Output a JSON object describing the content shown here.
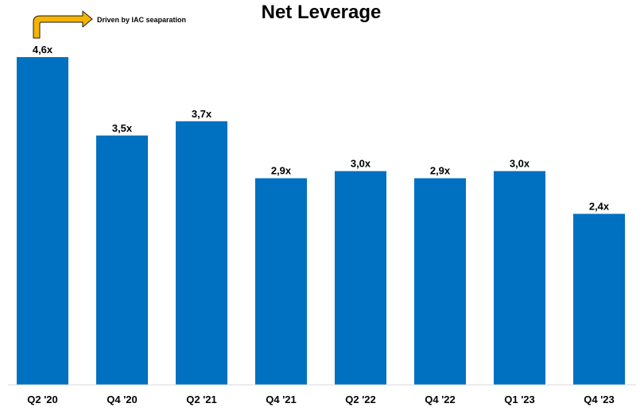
{
  "chart_data": {
    "type": "bar",
    "title": "Net Leverage",
    "categories": [
      "Q2 '20",
      "Q4 '20",
      "Q2 '21",
      "Q4 '21",
      "Q2 '22",
      "Q4 '22",
      "Q1 '23",
      "Q4 '23"
    ],
    "values": [
      4.6,
      3.5,
      3.7,
      2.9,
      3.0,
      2.9,
      3.0,
      2.4
    ],
    "data_labels": [
      "4,6x",
      "3,5x",
      "3,7x",
      "2,9x",
      "3,0x",
      "2,9x",
      "3,0x",
      "2,4x"
    ],
    "annotation": "Driven by IAC seaparation",
    "xlabel": "",
    "ylabel": "",
    "ylim": [
      0,
      4.6
    ],
    "grid": false,
    "legend": "none",
    "colors": {
      "bar": "#0070C0",
      "arrow": "#F5B400",
      "arrow_outline": "#1a1a1a"
    }
  }
}
